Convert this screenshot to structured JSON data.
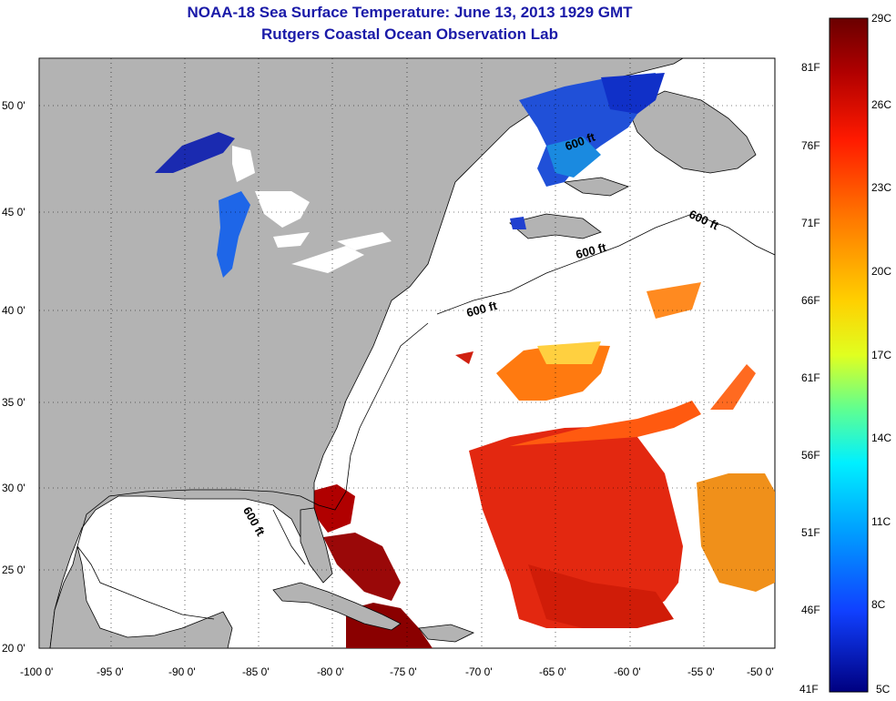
{
  "title": "NOAA-18 Sea Surface Temperature:  June 13, 2013 1929 GMT",
  "subtitle": "Rutgers Coastal Ocean Observation Lab",
  "map": {
    "lon_ticks": [
      "-100 0'",
      "-95 0'",
      "-90 0'",
      "-85 0'",
      "-80 0'",
      "-75 0'",
      "-70 0'",
      "-65 0'",
      "-60 0'",
      "-55 0'",
      "-50 0'"
    ],
    "lat_ticks": [
      "20 0'",
      "25 0'",
      "30 0'",
      "35 0'",
      "40 0'",
      "45 0'",
      "50 0'"
    ],
    "lon_range": [
      -100,
      -50
    ],
    "lat_range": [
      20,
      52.5
    ],
    "contour_labels": [
      "600 ft",
      "600 ft",
      "600 ft",
      "600 ft",
      "600 ft"
    ],
    "land_color": "#b3b3b3",
    "no_data_color": "#ffffff"
  },
  "colorbar": {
    "celsius_labels": [
      "29C",
      "26C",
      "23C",
      "20C",
      "17C",
      "14C",
      "11C",
      "8C",
      "5C"
    ],
    "fahrenheit_labels": [
      "81F",
      "76F",
      "71F",
      "66F",
      "61F",
      "56F",
      "51F",
      "46F",
      "41F"
    ],
    "range_c": [
      5,
      29
    ],
    "range_f": [
      41,
      84
    ],
    "colors": [
      "#7a0000",
      "#d01010",
      "#ff5a00",
      "#ffb000",
      "#f0f000",
      "#70ff80",
      "#00e0ff",
      "#0080ff",
      "#1030e0",
      "#00007a"
    ]
  }
}
